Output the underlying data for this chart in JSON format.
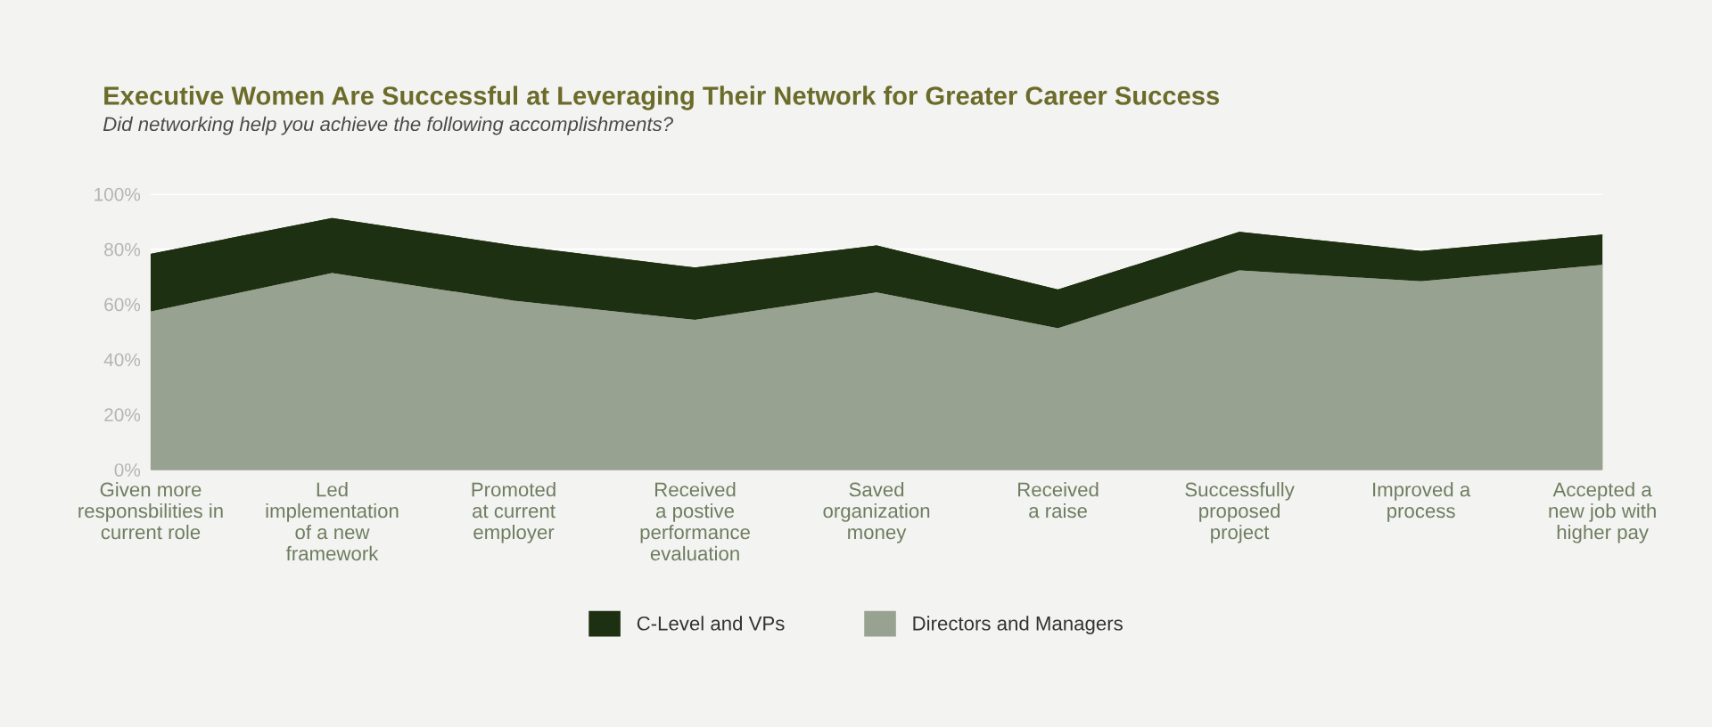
{
  "chart_data": {
    "type": "area",
    "title": "Executive Women Are Successful at Leveraging Their Network for Greater Career Success",
    "subtitle": "Did networking help you achieve the following accomplishments?",
    "categories": [
      "Given more\nresponsbilities in\ncurrent role",
      "Led\nimplementation\nof a new\nframework",
      "Promoted\nat current\nemployer",
      "Received\na postive\nperformance\nevaluation",
      "Saved\norganization\nmoney",
      "Received\na raise",
      "Successfully\nproposed\nproject",
      "Improved a\nprocess",
      "Accepted a\nnew job with\nhigher pay"
    ],
    "series": [
      {
        "name": "C-Level and VPs",
        "color": "#1e3012",
        "values": [
          78,
          91,
          81,
          73,
          81,
          65,
          86,
          79,
          85
        ]
      },
      {
        "name": "Directors and Managers",
        "color": "#98a290",
        "values": [
          57,
          71,
          61,
          54,
          64,
          51,
          72,
          68,
          74
        ]
      }
    ],
    "ylim": [
      0,
      100
    ],
    "yticks": [
      {
        "value": 0,
        "label": "0%"
      },
      {
        "value": 20,
        "label": "20%"
      },
      {
        "value": 40,
        "label": "40%"
      },
      {
        "value": 60,
        "label": "60%"
      },
      {
        "value": 80,
        "label": "80%"
      },
      {
        "value": 100,
        "label": "100%"
      }
    ],
    "grid": "y",
    "legend": "bottom"
  }
}
